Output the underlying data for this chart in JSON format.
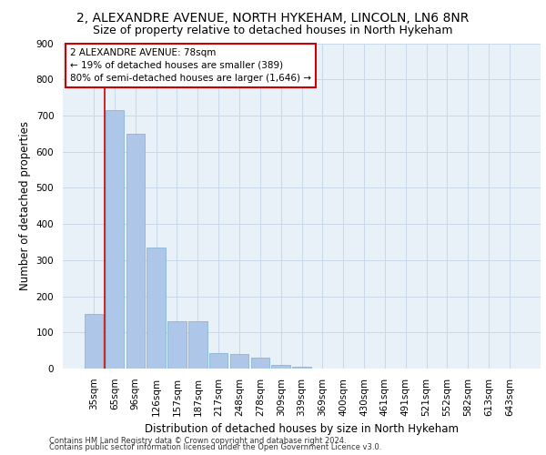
{
  "title_line1": "2, ALEXANDRE AVENUE, NORTH HYKEHAM, LINCOLN, LN6 8NR",
  "title_line2": "Size of property relative to detached houses in North Hykeham",
  "xlabel": "Distribution of detached houses by size in North Hykeham",
  "ylabel": "Number of detached properties",
  "categories": [
    "35sqm",
    "65sqm",
    "96sqm",
    "126sqm",
    "157sqm",
    "187sqm",
    "217sqm",
    "248sqm",
    "278sqm",
    "309sqm",
    "339sqm",
    "369sqm",
    "400sqm",
    "430sqm",
    "461sqm",
    "491sqm",
    "521sqm",
    "552sqm",
    "582sqm",
    "613sqm",
    "643sqm"
  ],
  "values": [
    150,
    715,
    650,
    335,
    130,
    130,
    43,
    40,
    30,
    10,
    5,
    0,
    0,
    0,
    0,
    0,
    0,
    0,
    0,
    0,
    0
  ],
  "bar_color": "#aec6e8",
  "bar_edge_color": "#7aaed4",
  "annotation_text": "2 ALEXANDRE AVENUE: 78sqm\n← 19% of detached houses are smaller (389)\n80% of semi-detached houses are larger (1,646) →",
  "annotation_box_color": "#ffffff",
  "annotation_box_edge_color": "#cc0000",
  "vline_color": "#cc0000",
  "vline_x_index": 1,
  "ylim": [
    0,
    900
  ],
  "yticks": [
    0,
    100,
    200,
    300,
    400,
    500,
    600,
    700,
    800,
    900
  ],
  "grid_color": "#c8d8e8",
  "background_color": "#e8f0f8",
  "footer_line1": "Contains HM Land Registry data © Crown copyright and database right 2024.",
  "footer_line2": "Contains public sector information licensed under the Open Government Licence v3.0.",
  "title_fontsize": 10,
  "subtitle_fontsize": 9,
  "axis_label_fontsize": 8.5,
  "tick_fontsize": 7.5,
  "annotation_fontsize": 7.5,
  "footer_fontsize": 6
}
